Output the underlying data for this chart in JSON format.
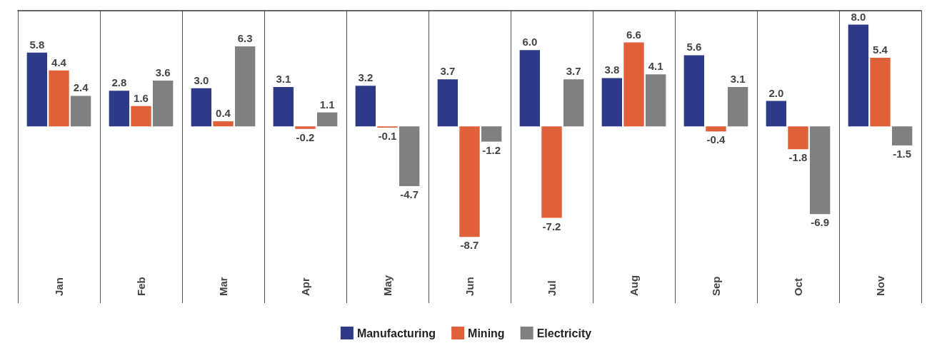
{
  "chart_data": {
    "type": "bar",
    "categories": [
      "Jan",
      "Feb",
      "Mar",
      "Apr",
      "May",
      "Jun",
      "Jul",
      "Aug",
      "Sep",
      "Oct",
      "Nov"
    ],
    "series": [
      {
        "name": "Manufacturing",
        "color": "#2e3a87",
        "values": [
          5.8,
          2.8,
          3.0,
          3.1,
          3.2,
          3.7,
          6.0,
          3.8,
          5.6,
          2.0,
          8.0
        ],
        "value_labels": [
          "5.8",
          "2.8",
          "3.0",
          "3.1",
          "3.2",
          "3.7",
          "6.0",
          "3.8",
          "5.6",
          "2.0",
          "8.0"
        ]
      },
      {
        "name": "Mining",
        "color": "#e0603a",
        "values": [
          4.4,
          1.6,
          0.4,
          -0.2,
          -0.1,
          -8.7,
          -7.2,
          6.6,
          -0.4,
          -1.8,
          5.4
        ],
        "value_labels": [
          "4.4",
          "1.6",
          "0.4",
          "-0.2",
          "-0.1",
          "-8.7",
          "-7.2",
          "6.6",
          "-0.4",
          "-1.8",
          "5.4"
        ]
      },
      {
        "name": "Electricity",
        "color": "#808080",
        "values": [
          2.4,
          3.6,
          6.3,
          1.1,
          -4.7,
          -1.2,
          3.7,
          4.1,
          3.1,
          -6.9,
          -1.5
        ],
        "value_labels": [
          "2.4",
          "3.6",
          "6.3",
          "1.1",
          "-4.7",
          "-1.2",
          "3.7",
          "4.1",
          "3.1",
          "-6.9",
          "-1.5"
        ]
      }
    ],
    "ylim": [
      -13.9,
      9.1
    ],
    "tick_labels": "x",
    "grid": "x",
    "legend": "bottom"
  }
}
